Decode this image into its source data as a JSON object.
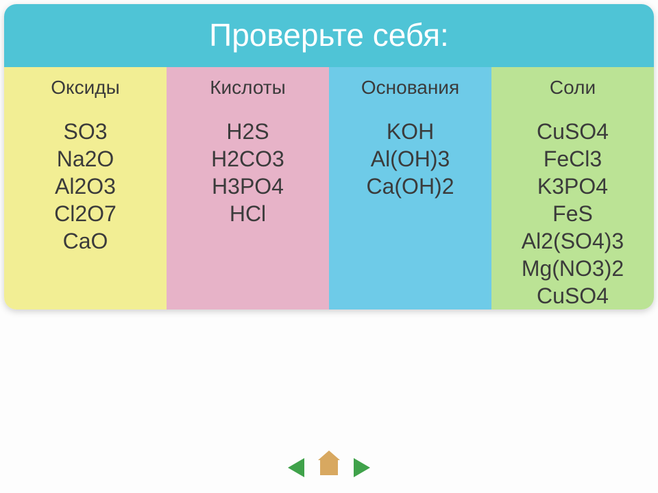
{
  "title": "Проверьте себя:",
  "title_bg": "#4fc4d6",
  "title_color": "#ffffff",
  "columns": [
    {
      "header": "Оксиды",
      "bg": "#f2ee94",
      "items": [
        "SO3",
        "Na2O",
        "Al2O3",
        "Cl2O7",
        "CaO"
      ]
    },
    {
      "header": "Кислоты",
      "bg": "#e7b3c8",
      "items": [
        "H2S",
        "H2CO3",
        "H3PO4",
        "HCl"
      ]
    },
    {
      "header": "Основания",
      "bg": "#6ecbe8",
      "items": [
        "KOH",
        "Al(OH)3",
        "Ca(OH)2"
      ]
    },
    {
      "header": "Соли",
      "bg": "#bbe395",
      "items": [
        "CuSO4",
        "FeCl3",
        "K3PO4",
        "FeS",
        "Al2(SO4)3",
        "Mg(NO3)2",
        "CuSO4"
      ]
    }
  ],
  "text_color": "#3b3b3b",
  "header_fontsize": 28,
  "item_fontsize": 32,
  "nav": {
    "arrow_color": "#3fa24a",
    "home_color": "#d8a860"
  }
}
